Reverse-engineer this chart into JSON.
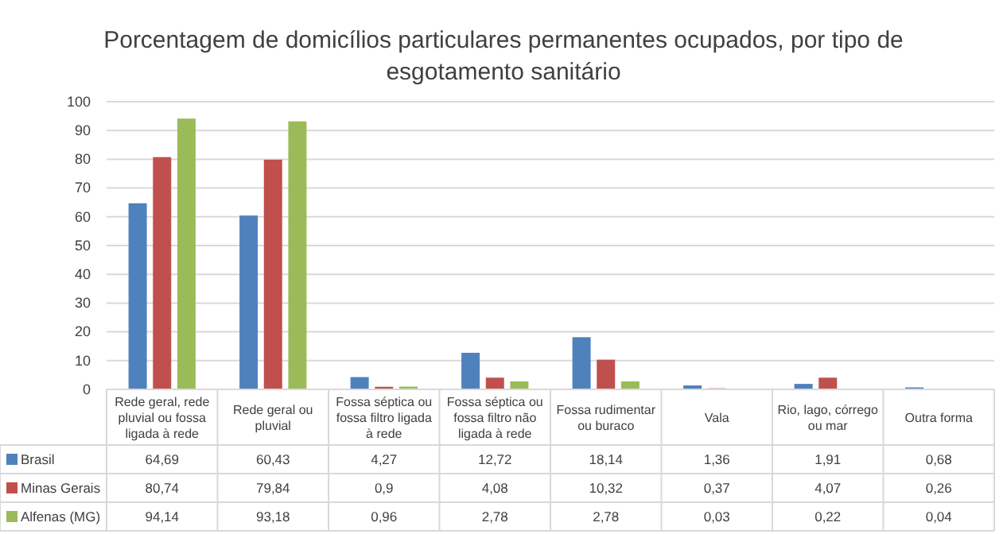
{
  "chart_data": {
    "type": "bar",
    "title": "Porcentagem de domicílios particulares permanentes ocupados, por tipo de esgotamento sanitário",
    "categories": [
      "Rede geral, rede pluvial ou fossa ligada à rede",
      "Rede geral ou pluvial",
      "Fossa séptica ou fossa filtro ligada à rede",
      "Fossa séptica ou fossa filtro não ligada à rede",
      "Fossa rudimentar ou buraco",
      "Vala",
      "Rio, lago, córrego ou mar",
      "Outra forma"
    ],
    "series": [
      {
        "name": "Brasil",
        "color": "#4f81bd",
        "values": [
          64.69,
          60.43,
          4.27,
          12.72,
          18.14,
          1.36,
          1.91,
          0.68
        ],
        "value_labels": [
          "64,69",
          "60,43",
          "4,27",
          "12,72",
          "18,14",
          "1,36",
          "1,91",
          "0,68"
        ]
      },
      {
        "name": "Minas Gerais",
        "color": "#c0504d",
        "values": [
          80.74,
          79.84,
          0.9,
          4.08,
          10.32,
          0.37,
          4.07,
          0.26
        ],
        "value_labels": [
          "80,74",
          "79,84",
          "0,9",
          "4,08",
          "10,32",
          "0,37",
          "4,07",
          "0,26"
        ]
      },
      {
        "name": "Alfenas (MG)",
        "color": "#9bbb59",
        "values": [
          94.14,
          93.18,
          0.96,
          2.78,
          2.78,
          0.03,
          0.22,
          0.04
        ],
        "value_labels": [
          "94,14",
          "93,18",
          "0,96",
          "2,78",
          "2,78",
          "0,03",
          "0,22",
          "0,04"
        ]
      }
    ],
    "ylim": [
      0,
      100
    ],
    "yticks": [
      0,
      10,
      20,
      30,
      40,
      50,
      60,
      70,
      80,
      90,
      100
    ],
    "grid": "y",
    "legend": "bottom"
  }
}
